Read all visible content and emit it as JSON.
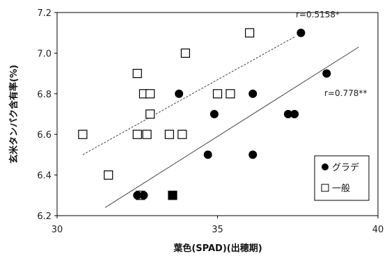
{
  "chart_data": {
    "type": "scatter",
    "xlim": [
      30,
      40
    ],
    "ylim": [
      6.2,
      7.2
    ],
    "x_ticks": [
      "30",
      "35",
      "40"
    ],
    "y_ticks": [
      "6.2",
      "6.4",
      "6.6",
      "6.8",
      "7.0",
      "7.2"
    ],
    "xlabel": "葉色(SPAD)(出穂期)",
    "ylabel": "玄米タンパク含有率(%)",
    "grid": false,
    "legend_position": "bottom-right",
    "series": [
      {
        "name": "グラデ",
        "marker": "filled-circle",
        "color": "#000000",
        "points": [
          [
            32.5,
            6.3
          ],
          [
            32.7,
            6.3
          ],
          [
            33.8,
            6.8
          ],
          [
            34.7,
            6.5
          ],
          [
            34.9,
            6.7
          ],
          [
            36.1,
            6.8
          ],
          [
            36.1,
            6.5
          ],
          [
            37.2,
            6.7
          ],
          [
            37.4,
            6.7
          ],
          [
            37.6,
            7.1
          ],
          [
            38.4,
            6.9
          ]
        ],
        "r_label": "r=0.778**",
        "trendline": {
          "style": "solid",
          "from": [
            31.5,
            6.24
          ],
          "to": [
            39.4,
            7.03
          ]
        }
      },
      {
        "name": "一般",
        "marker": "open-square",
        "color": "#000000",
        "points": [
          [
            30.8,
            6.6
          ],
          [
            31.6,
            6.4
          ],
          [
            32.5,
            6.9
          ],
          [
            32.5,
            6.6
          ],
          [
            32.6,
            6.3
          ],
          [
            32.7,
            6.8
          ],
          [
            32.8,
            6.6
          ],
          [
            32.9,
            6.8
          ],
          [
            32.9,
            6.7
          ],
          [
            33.5,
            6.6
          ],
          [
            33.6,
            6.3
          ],
          [
            33.9,
            6.6
          ],
          [
            34.0,
            7.0
          ],
          [
            35.0,
            6.8
          ],
          [
            35.4,
            6.8
          ],
          [
            36.0,
            7.1
          ]
        ],
        "r_label": "r=0.5158*",
        "trendline": {
          "style": "dashed",
          "from": [
            30.8,
            6.5
          ],
          "to": [
            37.4,
            7.08
          ]
        }
      }
    ],
    "overlap_points": [
      {
        "x": 33.6,
        "y": 6.3,
        "marker": "filled-square"
      }
    ]
  }
}
